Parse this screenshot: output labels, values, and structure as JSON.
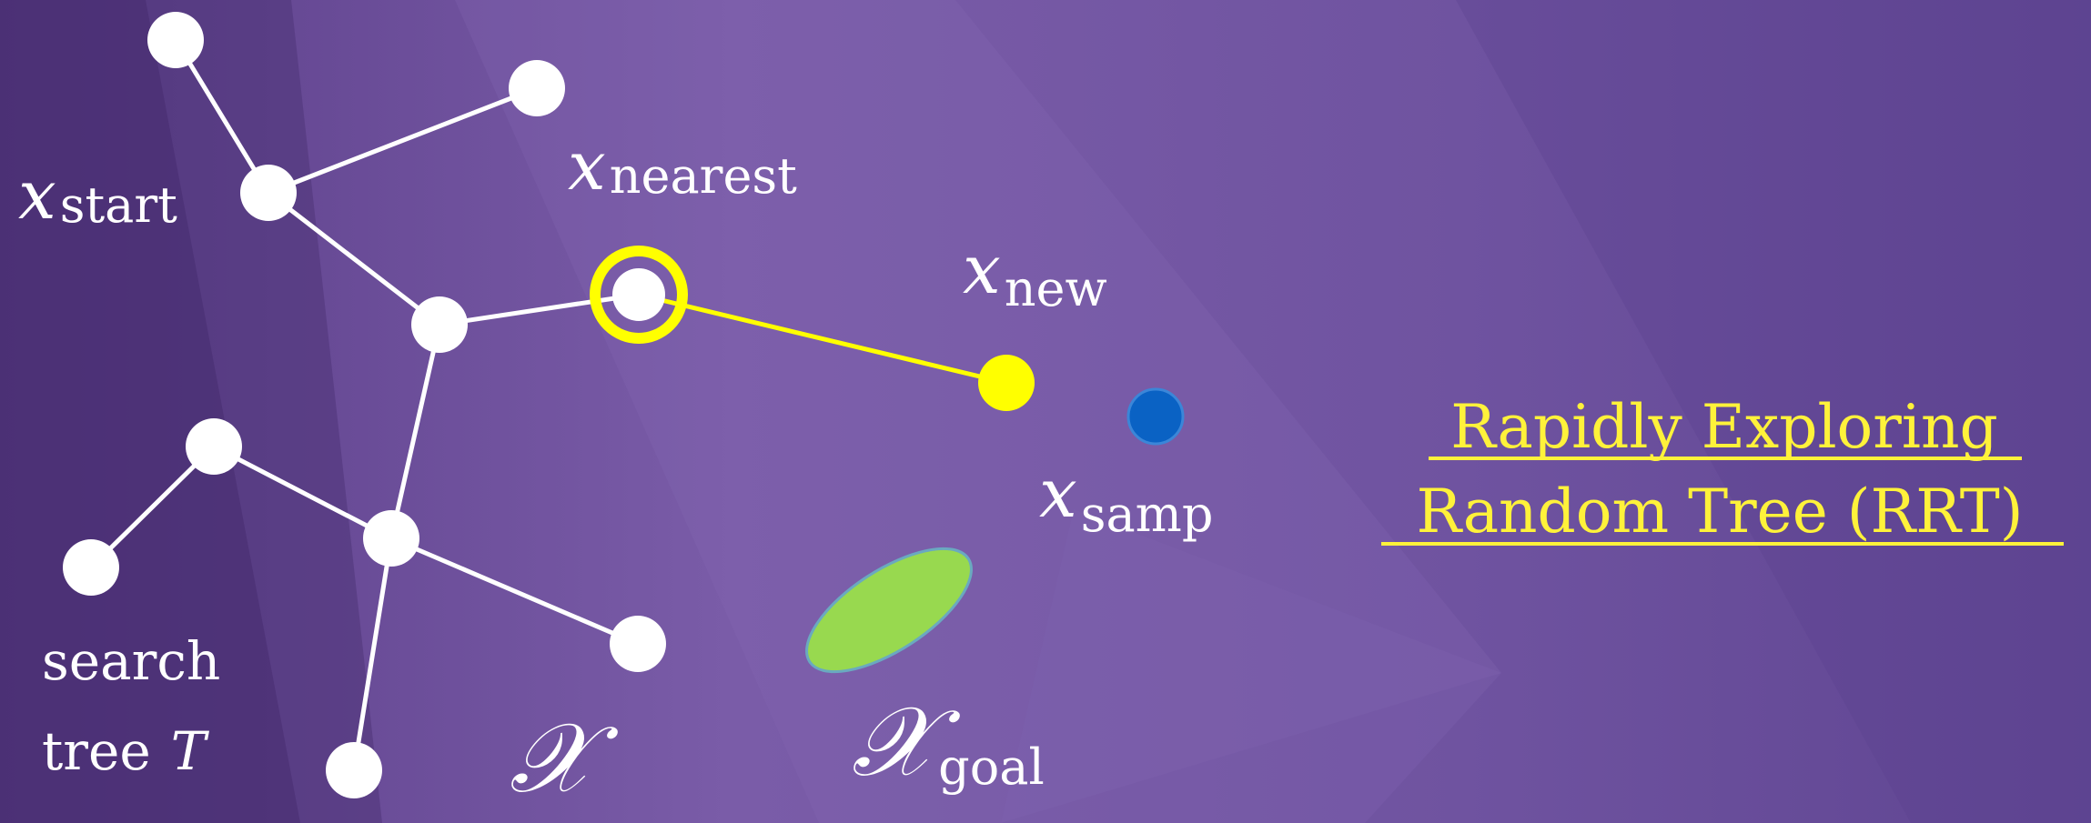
{
  "title": {
    "line1": "Rapidly Exploring",
    "line2": "Random Tree (RRT)"
  },
  "labels": {
    "x_start": {
      "symbol": "x",
      "subscript": "start"
    },
    "x_nearest": {
      "symbol": "x",
      "subscript": "nearest"
    },
    "x_new": {
      "symbol": "x",
      "subscript": "new"
    },
    "x_samp": {
      "symbol": "x",
      "subscript": "samp"
    },
    "search_tree": {
      "line1": "search",
      "line2_text": "tree",
      "line2_symbol": "T"
    },
    "space": {
      "symbol": "𝒳"
    },
    "goal": {
      "symbol": "𝒳",
      "subscript": "goal"
    }
  },
  "colors": {
    "background": "#6a4f9c",
    "tree_node": "#ffffff",
    "tree_edge": "#ffffff",
    "highlight": "#ffff00",
    "sample_point": "#0a62c4",
    "goal_region": "#98d94f",
    "title": "#fff23a"
  }
}
